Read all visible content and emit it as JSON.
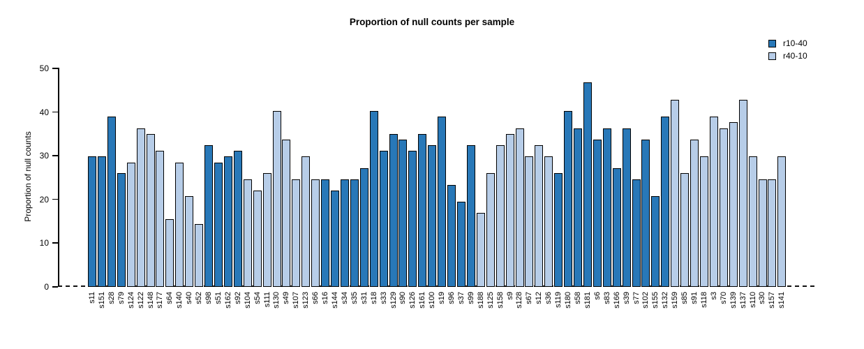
{
  "chart_data": {
    "type": "bar",
    "title": "Proportion of null counts per sample",
    "ylabel": "Proportion of null counts",
    "xlabel": "",
    "ylim": [
      0,
      50
    ],
    "yticks": [
      0,
      10,
      20,
      30,
      40,
      50
    ],
    "grid": false,
    "legend_position": "top-right",
    "zero_line_style": "dashed",
    "legend": [
      {
        "name": "r10-40",
        "color": "#2878b8"
      },
      {
        "name": "r40-10",
        "color": "#b7cde8"
      }
    ],
    "samples": [
      {
        "label": "s11",
        "value": 29.8,
        "series": "r10-40"
      },
      {
        "label": "s151",
        "value": 29.8,
        "series": "r10-40"
      },
      {
        "label": "s28",
        "value": 39.0,
        "series": "r10-40"
      },
      {
        "label": "s79",
        "value": 26.0,
        "series": "r10-40"
      },
      {
        "label": "s124",
        "value": 28.5,
        "series": "r40-10"
      },
      {
        "label": "s122",
        "value": 36.3,
        "series": "r40-10"
      },
      {
        "label": "s148",
        "value": 35.0,
        "series": "r40-10"
      },
      {
        "label": "s177",
        "value": 31.2,
        "series": "r40-10"
      },
      {
        "label": "s64",
        "value": 15.5,
        "series": "r40-10"
      },
      {
        "label": "s140",
        "value": 28.5,
        "series": "r40-10"
      },
      {
        "label": "s40",
        "value": 20.8,
        "series": "r40-10"
      },
      {
        "label": "s52",
        "value": 14.3,
        "series": "r40-10"
      },
      {
        "label": "s98",
        "value": 32.5,
        "series": "r10-40"
      },
      {
        "label": "s51",
        "value": 28.5,
        "series": "r10-40"
      },
      {
        "label": "s162",
        "value": 29.8,
        "series": "r10-40"
      },
      {
        "label": "s92",
        "value": 31.2,
        "series": "r10-40"
      },
      {
        "label": "s104",
        "value": 24.6,
        "series": "r40-10"
      },
      {
        "label": "s54",
        "value": 22.0,
        "series": "r40-10"
      },
      {
        "label": "s111",
        "value": 26.0,
        "series": "r40-10"
      },
      {
        "label": "s130",
        "value": 40.2,
        "series": "r40-10"
      },
      {
        "label": "s49",
        "value": 33.7,
        "series": "r40-10"
      },
      {
        "label": "s107",
        "value": 24.6,
        "series": "r40-10"
      },
      {
        "label": "s123",
        "value": 29.8,
        "series": "r40-10"
      },
      {
        "label": "s66",
        "value": 24.6,
        "series": "r40-10"
      },
      {
        "label": "s16",
        "value": 24.6,
        "series": "r10-40"
      },
      {
        "label": "s144",
        "value": 22.0,
        "series": "r10-40"
      },
      {
        "label": "s34",
        "value": 24.6,
        "series": "r10-40"
      },
      {
        "label": "s35",
        "value": 24.6,
        "series": "r10-40"
      },
      {
        "label": "s31",
        "value": 27.2,
        "series": "r10-40"
      },
      {
        "label": "s18",
        "value": 40.2,
        "series": "r10-40"
      },
      {
        "label": "s33",
        "value": 31.2,
        "series": "r10-40"
      },
      {
        "label": "s129",
        "value": 35.0,
        "series": "r10-40"
      },
      {
        "label": "s90",
        "value": 33.7,
        "series": "r10-40"
      },
      {
        "label": "s126",
        "value": 31.2,
        "series": "r10-40"
      },
      {
        "label": "s161",
        "value": 35.0,
        "series": "r10-40"
      },
      {
        "label": "s100",
        "value": 32.5,
        "series": "r10-40"
      },
      {
        "label": "s19",
        "value": 39.0,
        "series": "r10-40"
      },
      {
        "label": "s96",
        "value": 23.4,
        "series": "r10-40"
      },
      {
        "label": "s37",
        "value": 19.5,
        "series": "r10-40"
      },
      {
        "label": "s99",
        "value": 32.5,
        "series": "r10-40"
      },
      {
        "label": "s188",
        "value": 16.9,
        "series": "r40-10"
      },
      {
        "label": "s125",
        "value": 26.0,
        "series": "r40-10"
      },
      {
        "label": "s158",
        "value": 32.5,
        "series": "r40-10"
      },
      {
        "label": "s9",
        "value": 35.0,
        "series": "r40-10"
      },
      {
        "label": "s128",
        "value": 36.3,
        "series": "r40-10"
      },
      {
        "label": "s67",
        "value": 29.8,
        "series": "r40-10"
      },
      {
        "label": "s12",
        "value": 32.5,
        "series": "r40-10"
      },
      {
        "label": "s36",
        "value": 29.8,
        "series": "r40-10"
      },
      {
        "label": "s119",
        "value": 26.0,
        "series": "r10-40"
      },
      {
        "label": "s180",
        "value": 40.2,
        "series": "r10-40"
      },
      {
        "label": "s58",
        "value": 36.3,
        "series": "r10-40"
      },
      {
        "label": "s181",
        "value": 46.8,
        "series": "r10-40"
      },
      {
        "label": "s6",
        "value": 33.7,
        "series": "r10-40"
      },
      {
        "label": "s83",
        "value": 36.3,
        "series": "r10-40"
      },
      {
        "label": "s166",
        "value": 27.2,
        "series": "r10-40"
      },
      {
        "label": "s39",
        "value": 36.3,
        "series": "r10-40"
      },
      {
        "label": "s77",
        "value": 24.6,
        "series": "r10-40"
      },
      {
        "label": "s102",
        "value": 33.7,
        "series": "r10-40"
      },
      {
        "label": "s155",
        "value": 20.8,
        "series": "r10-40"
      },
      {
        "label": "s132",
        "value": 38.9,
        "series": "r10-40"
      },
      {
        "label": "s159",
        "value": 42.8,
        "series": "r40-10"
      },
      {
        "label": "s85",
        "value": 26.0,
        "series": "r40-10"
      },
      {
        "label": "s91",
        "value": 33.7,
        "series": "r40-10"
      },
      {
        "label": "s118",
        "value": 29.8,
        "series": "r40-10"
      },
      {
        "label": "s3",
        "value": 39.0,
        "series": "r40-10"
      },
      {
        "label": "s70",
        "value": 36.3,
        "series": "r40-10"
      },
      {
        "label": "s139",
        "value": 37.7,
        "series": "r40-10"
      },
      {
        "label": "s137",
        "value": 42.8,
        "series": "r40-10"
      },
      {
        "label": "s110",
        "value": 29.8,
        "series": "r40-10"
      },
      {
        "label": "s30",
        "value": 24.6,
        "series": "r40-10"
      },
      {
        "label": "s157",
        "value": 24.6,
        "series": "r40-10"
      },
      {
        "label": "s141",
        "value": 29.8,
        "series": "r40-10"
      }
    ]
  }
}
